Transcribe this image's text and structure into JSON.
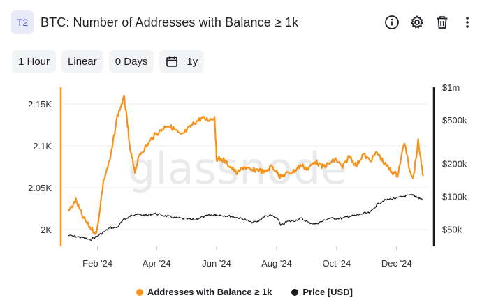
{
  "header": {
    "badge": "T2",
    "title": "BTC: Number of Addresses with Balance ≥ 1k",
    "icons": [
      "info-icon",
      "gear-icon",
      "trash-icon",
      "more-vertical-icon"
    ]
  },
  "toolbar": {
    "resolution": "1 Hour",
    "scale": "Linear",
    "sma": "0 Days",
    "range": "1y",
    "range_icon": "calendar-icon"
  },
  "watermark": "glassnode",
  "colors": {
    "addresses": "#f7931a",
    "price": "#1a1a1a",
    "accent": "#4a55c7"
  },
  "chart_data": {
    "type": "line",
    "title": "BTC: Number of Addresses with Balance ≥ 1k",
    "x": [
      "2024-01-02",
      "2024-01-10",
      "2024-01-17",
      "2024-01-24",
      "2024-01-31",
      "2024-02-07",
      "2024-02-14",
      "2024-02-21",
      "2024-02-28",
      "2024-03-02",
      "2024-03-05",
      "2024-03-10",
      "2024-03-15",
      "2024-03-22",
      "2024-03-29",
      "2024-04-05",
      "2024-04-12",
      "2024-04-19",
      "2024-04-26",
      "2024-05-03",
      "2024-05-10",
      "2024-05-17",
      "2024-05-24",
      "2024-05-30",
      "2024-06-01",
      "2024-06-08",
      "2024-06-15",
      "2024-06-22",
      "2024-06-29",
      "2024-07-06",
      "2024-07-13",
      "2024-07-20",
      "2024-07-27",
      "2024-08-03",
      "2024-08-05",
      "2024-08-12",
      "2024-08-19",
      "2024-08-26",
      "2024-09-02",
      "2024-09-09",
      "2024-09-16",
      "2024-09-23",
      "2024-09-30",
      "2024-10-07",
      "2024-10-14",
      "2024-10-21",
      "2024-10-28",
      "2024-11-04",
      "2024-11-11",
      "2024-11-18",
      "2024-11-25",
      "2024-12-02",
      "2024-12-09",
      "2024-12-14",
      "2024-12-18",
      "2024-12-23",
      "2024-12-28"
    ],
    "x_ticks": [
      "Feb '24",
      "Apr '24",
      "Jun '24",
      "Aug '24",
      "Oct '24",
      "Dec '24"
    ],
    "series": [
      {
        "name": "Addresses with Balance ≥ 1k",
        "axis": "left",
        "values": [
          2021,
          2035,
          2015,
          2003,
          1995,
          2058,
          2085,
          2135,
          2158,
          2130,
          2095,
          2070,
          2090,
          2100,
          2112,
          2118,
          2125,
          2120,
          2112,
          2120,
          2128,
          2133,
          2131,
          2134,
          2085,
          2083,
          2075,
          2067,
          2075,
          2070,
          2072,
          2068,
          2076,
          2066,
          2063,
          2067,
          2070,
          2077,
          2072,
          2082,
          2075,
          2078,
          2084,
          2074,
          2088,
          2076,
          2090,
          2082,
          2092,
          2080,
          2070,
          2065,
          2105,
          2072,
          2062,
          2105,
          2064
        ]
      },
      {
        "name": "Price [USD]",
        "axis": "right",
        "values": [
          44000,
          43000,
          42000,
          40000,
          43000,
          47000,
          52000,
          52000,
          62000,
          63000,
          66000,
          69000,
          68000,
          67000,
          70000,
          68000,
          66000,
          64000,
          63000,
          62000,
          61000,
          65000,
          67000,
          68000,
          68000,
          67000,
          66000,
          64000,
          62000,
          58000,
          59000,
          66000,
          67000,
          61000,
          54000,
          59000,
          60000,
          63000,
          58000,
          56000,
          59000,
          63000,
          63000,
          63000,
          66000,
          67000,
          70000,
          71000,
          84000,
          92000,
          95000,
          97000,
          101000,
          102000,
          104000,
          97000,
          94000
        ]
      }
    ],
    "y_left": {
      "ticks": [
        "2K",
        "2.05K",
        "2.1K",
        "2.15K"
      ],
      "range": [
        1980,
        2170
      ]
    },
    "y_right": {
      "ticks": [
        "$50k",
        "$100k",
        "$200k",
        "$500k",
        "$1m"
      ],
      "scale": "log",
      "range": [
        35000,
        1000000
      ]
    },
    "grid": "horizontal",
    "legend_position": "bottom"
  },
  "legend": {
    "items": [
      {
        "label": "Addresses with Balance ≥ 1k",
        "color": "#f7931a"
      },
      {
        "label": "Price [USD]",
        "color": "#1a1a1a"
      }
    ]
  }
}
